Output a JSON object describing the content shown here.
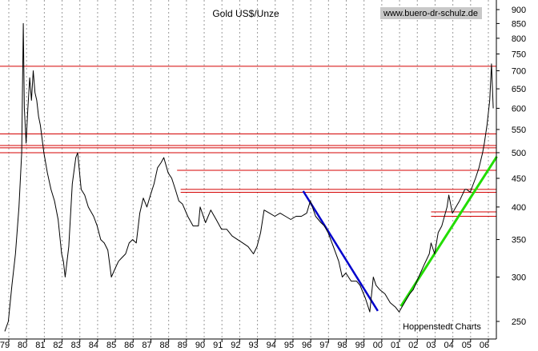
{
  "chart_data": {
    "type": "line",
    "title": "Gold US$/Unze",
    "source_label": "www.buero-dr-schulz.de",
    "credit": "Hoppenstedt Charts",
    "y_scale": "log",
    "ylim": [
      235,
      920
    ],
    "xlim": [
      1979.0,
      2006.7
    ],
    "y_ticks": [
      250,
      300,
      350,
      400,
      450,
      500,
      550,
      600,
      650,
      700,
      750,
      800,
      850,
      900
    ],
    "y_tick_labels": [
      "250",
      "300",
      "350",
      "400",
      "450",
      "500",
      "550",
      "600",
      "650",
      "700",
      "750",
      "800",
      "850",
      "900"
    ],
    "x_ticks": [
      1979,
      1980,
      1981,
      1982,
      1983,
      1984,
      1985,
      1986,
      1987,
      1988,
      1989,
      1990,
      1991,
      1992,
      1993,
      1994,
      1995,
      1996,
      1997,
      1998,
      1999,
      2000,
      2001,
      2002,
      2003,
      2004,
      2005,
      2006
    ],
    "x_tick_labels": [
      "79",
      "80",
      "81",
      "82",
      "83",
      "84",
      "85",
      "86",
      "87",
      "88",
      "89",
      "90",
      "91",
      "92",
      "93",
      "94",
      "95",
      "96",
      "97",
      "98",
      "99",
      "00",
      "01",
      "02",
      "03",
      "04",
      "05",
      "06"
    ],
    "grid": "vertical dashed",
    "colors": {
      "price": "#000000",
      "resistance": "#d40000",
      "downtrend": "#0000cc",
      "uptrend": "#22dd00",
      "grid": "#999999",
      "source_bg": "#c8c8c8"
    },
    "series": [
      {
        "x": [
          1979.0,
          1979.2,
          1979.4,
          1979.6,
          1979.8,
          1979.95,
          1980.04,
          1980.1,
          1980.2,
          1980.3,
          1980.4,
          1980.5,
          1980.6,
          1980.7,
          1980.8,
          1980.9,
          1981.0,
          1981.2,
          1981.4,
          1981.6,
          1981.8,
          1982.0,
          1982.2,
          1982.3,
          1982.4,
          1982.6,
          1982.8,
          1983.0,
          1983.1,
          1983.3,
          1983.5,
          1983.7,
          1984.0,
          1984.2,
          1984.4,
          1984.6,
          1984.8,
          1985.0,
          1985.2,
          1985.4,
          1985.6,
          1985.8,
          1986.0,
          1986.2,
          1986.4,
          1986.6,
          1986.8,
          1987.0,
          1987.2,
          1987.4,
          1987.6,
          1987.8,
          1987.95,
          1988.2,
          1988.4,
          1988.6,
          1988.8,
          1989.0,
          1989.3,
          1989.6,
          1989.9,
          1990.0,
          1990.3,
          1990.6,
          1990.9,
          1991.2,
          1991.5,
          1991.8,
          1992.1,
          1992.4,
          1992.7,
          1993.0,
          1993.2,
          1993.4,
          1993.6,
          1993.9,
          1994.2,
          1994.5,
          1994.8,
          1995.1,
          1995.4,
          1995.7,
          1996.0,
          1996.2,
          1996.5,
          1996.8,
          1997.0,
          1997.2,
          1997.5,
          1997.8,
          1998.0,
          1998.2,
          1998.5,
          1998.8,
          1999.0,
          1999.3,
          1999.55,
          1999.75,
          1999.9,
          2000.1,
          2000.4,
          2000.7,
          2001.0,
          2001.2,
          2001.5,
          2001.8,
          2002.0,
          2002.3,
          2002.6,
          2002.9,
          2003.0,
          2003.2,
          2003.4,
          2003.6,
          2003.9,
          2004.0,
          2004.2,
          2004.4,
          2004.6,
          2004.9,
          2005.0,
          2005.2,
          2005.5,
          2005.7,
          2005.9,
          2006.0,
          2006.15,
          2006.3,
          2006.4,
          2006.5
        ],
        "y": [
          240,
          250,
          290,
          330,
          400,
          500,
          850,
          600,
          520,
          600,
          680,
          620,
          700,
          640,
          620,
          580,
          560,
          500,
          460,
          430,
          410,
          380,
          330,
          320,
          300,
          340,
          440,
          490,
          500,
          430,
          420,
          400,
          385,
          370,
          350,
          345,
          335,
          300,
          310,
          320,
          325,
          330,
          345,
          350,
          345,
          390,
          415,
          400,
          420,
          440,
          470,
          480,
          490,
          460,
          450,
          430,
          410,
          405,
          385,
          370,
          370,
          400,
          375,
          395,
          380,
          365,
          365,
          355,
          350,
          345,
          340,
          330,
          340,
          360,
          395,
          390,
          385,
          390,
          385,
          380,
          385,
          385,
          390,
          410,
          385,
          375,
          370,
          360,
          340,
          320,
          300,
          305,
          295,
          295,
          290,
          275,
          260,
          300,
          290,
          285,
          280,
          270,
          265,
          260,
          270,
          280,
          285,
          300,
          315,
          330,
          345,
          330,
          360,
          370,
          400,
          420,
          390,
          400,
          410,
          430,
          430,
          425,
          450,
          470,
          500,
          520,
          560,
          620,
          720,
          600
        ]
      }
    ],
    "resistance_levels": [
      713,
      540,
      515,
      510,
      500,
      465,
      430,
      425,
      392,
      385
    ],
    "downtrend_line": {
      "x": [
        1995.8,
        2000.0
      ],
      "y": [
        427,
        261
      ]
    },
    "uptrend_line": {
      "x": [
        2001.3,
        2006.7
      ],
      "y": [
        266,
        492
      ]
    }
  }
}
